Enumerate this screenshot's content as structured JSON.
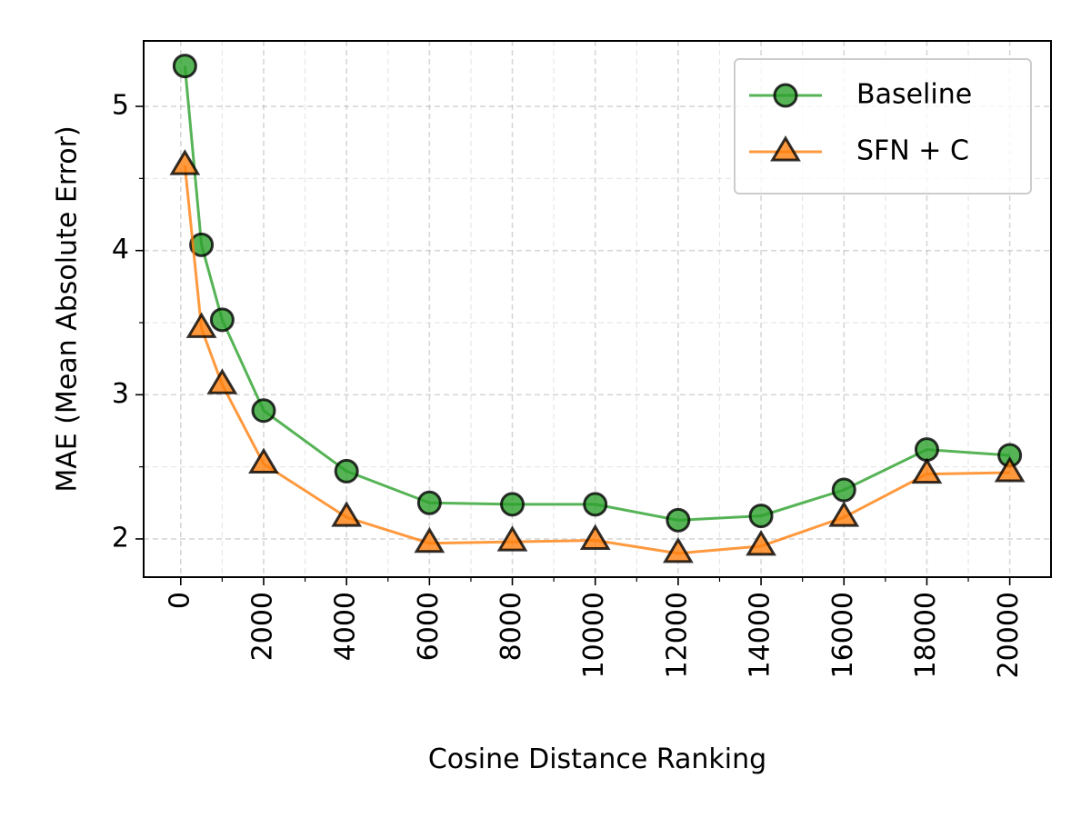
{
  "chart_data": {
    "type": "line",
    "xlabel": "Cosine Distance Ranking",
    "ylabel": "MAE (Mean Absolute Error)",
    "x": [
      100,
      500,
      1000,
      2000,
      4000,
      6000,
      8000,
      10000,
      12000,
      14000,
      16000,
      18000,
      20000
    ],
    "series": [
      {
        "name": "Baseline",
        "color": "#2ca02c",
        "marker": "circle",
        "values": [
          5.28,
          4.04,
          3.52,
          2.89,
          2.47,
          2.25,
          2.24,
          2.24,
          2.13,
          2.16,
          2.34,
          2.62,
          2.58
        ]
      },
      {
        "name": "SFN + C",
        "color": "#ff7f0e",
        "marker": "triangle",
        "values": [
          4.59,
          3.46,
          3.07,
          2.52,
          2.15,
          1.97,
          1.98,
          1.99,
          1.9,
          1.95,
          2.15,
          2.45,
          2.46
        ]
      }
    ],
    "xlim": [
      -895,
      20995
    ],
    "ylim": [
      1.735,
      5.454
    ],
    "xticks": [
      0,
      2000,
      4000,
      6000,
      8000,
      10000,
      12000,
      14000,
      16000,
      18000,
      20000
    ],
    "xticks_minor": [
      1000,
      3000,
      5000,
      7000,
      9000,
      11000,
      13000,
      15000,
      17000,
      19000
    ],
    "yticks": [
      2,
      3,
      4,
      5
    ],
    "yticks_minor": [
      2.5,
      3.5,
      4.5
    ],
    "grid": true,
    "legend": "upper right"
  }
}
